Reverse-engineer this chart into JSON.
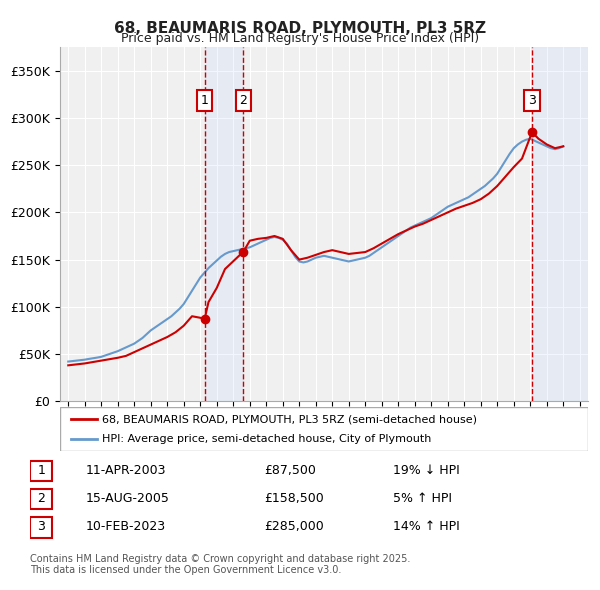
{
  "title_line1": "68, BEAUMARIS ROAD, PLYMOUTH, PL3 5RZ",
  "title_line2": "Price paid vs. HM Land Registry's House Price Index (HPI)",
  "ylabel": "",
  "xlabel": "",
  "xlim_start": 1995,
  "xlim_end": 2026.5,
  "ylim_min": 0,
  "ylim_max": 375000,
  "yticks": [
    0,
    50000,
    100000,
    150000,
    200000,
    250000,
    300000,
    350000
  ],
  "ytick_labels": [
    "£0",
    "£50K",
    "£100K",
    "£150K",
    "£200K",
    "£250K",
    "£300K",
    "£350K"
  ],
  "background_color": "#ffffff",
  "plot_bg_color": "#f0f0f0",
  "grid_color": "#ffffff",
  "hpi_line_color": "#6699cc",
  "price_line_color": "#cc0000",
  "transaction_marker_color": "#cc0000",
  "transactions": [
    {
      "date": 2003.27,
      "price": 87500,
      "label": "1"
    },
    {
      "date": 2005.62,
      "price": 158500,
      "label": "2"
    },
    {
      "date": 2023.11,
      "price": 285000,
      "label": "3"
    }
  ],
  "vline_color": "#cc0000",
  "shade_color": "#cce0ff",
  "legend_entries": [
    "68, BEAUMARIS ROAD, PLYMOUTH, PL3 5RZ (semi-detached house)",
    "HPI: Average price, semi-detached house, City of Plymouth"
  ],
  "table_rows": [
    {
      "num": "1",
      "date": "11-APR-2003",
      "price": "£87,500",
      "hpi": "19% ↓ HPI"
    },
    {
      "num": "2",
      "date": "15-AUG-2005",
      "price": "£158,500",
      "hpi": "5% ↑ HPI"
    },
    {
      "num": "3",
      "date": "10-FEB-2023",
      "price": "£285,000",
      "hpi": "14% ↑ HPI"
    }
  ],
  "footer": "Contains HM Land Registry data © Crown copyright and database right 2025.\nThis data is licensed under the Open Government Licence v3.0.",
  "hpi_data_x": [
    1995.0,
    1995.25,
    1995.5,
    1995.75,
    1996.0,
    1996.25,
    1996.5,
    1996.75,
    1997.0,
    1997.25,
    1997.5,
    1997.75,
    1998.0,
    1998.25,
    1998.5,
    1998.75,
    1999.0,
    1999.25,
    1999.5,
    1999.75,
    2000.0,
    2000.25,
    2000.5,
    2000.75,
    2001.0,
    2001.25,
    2001.5,
    2001.75,
    2002.0,
    2002.25,
    2002.5,
    2002.75,
    2003.0,
    2003.25,
    2003.5,
    2003.75,
    2004.0,
    2004.25,
    2004.5,
    2004.75,
    2005.0,
    2005.25,
    2005.5,
    2005.75,
    2006.0,
    2006.25,
    2006.5,
    2006.75,
    2007.0,
    2007.25,
    2007.5,
    2007.75,
    2008.0,
    2008.25,
    2008.5,
    2008.75,
    2009.0,
    2009.25,
    2009.5,
    2009.75,
    2010.0,
    2010.25,
    2010.5,
    2010.75,
    2011.0,
    2011.25,
    2011.5,
    2011.75,
    2012.0,
    2012.25,
    2012.5,
    2012.75,
    2013.0,
    2013.25,
    2013.5,
    2013.75,
    2014.0,
    2014.25,
    2014.5,
    2014.75,
    2015.0,
    2015.25,
    2015.5,
    2015.75,
    2016.0,
    2016.25,
    2016.5,
    2016.75,
    2017.0,
    2017.25,
    2017.5,
    2017.75,
    2018.0,
    2018.25,
    2018.5,
    2018.75,
    2019.0,
    2019.25,
    2019.5,
    2019.75,
    2020.0,
    2020.25,
    2020.5,
    2020.75,
    2021.0,
    2021.25,
    2021.5,
    2021.75,
    2022.0,
    2022.25,
    2022.5,
    2022.75,
    2023.0,
    2023.25,
    2023.5,
    2023.75,
    2024.0,
    2024.25,
    2024.5,
    2024.75,
    2025.0
  ],
  "hpi_data_y": [
    42000,
    42500,
    43000,
    43500,
    44000,
    44800,
    45500,
    46200,
    47000,
    48500,
    50000,
    51500,
    53000,
    55000,
    57000,
    59000,
    61000,
    64000,
    67000,
    71000,
    75000,
    78000,
    81000,
    84000,
    87000,
    90000,
    94000,
    98000,
    103000,
    110000,
    117000,
    124000,
    131000,
    136000,
    141000,
    145000,
    149000,
    153000,
    156000,
    158000,
    159000,
    160000,
    161000,
    162000,
    163000,
    165000,
    167000,
    169000,
    171000,
    173000,
    174000,
    173000,
    171000,
    167000,
    160000,
    153000,
    148000,
    147000,
    148000,
    150000,
    152000,
    153000,
    154000,
    153000,
    152000,
    151000,
    150000,
    149000,
    148000,
    149000,
    150000,
    151000,
    152000,
    154000,
    157000,
    160000,
    163000,
    166000,
    169000,
    172000,
    175000,
    178000,
    181000,
    184000,
    186000,
    188000,
    190000,
    192000,
    194000,
    197000,
    200000,
    203000,
    206000,
    208000,
    210000,
    212000,
    214000,
    216000,
    219000,
    222000,
    225000,
    228000,
    232000,
    236000,
    241000,
    248000,
    255000,
    262000,
    268000,
    272000,
    275000,
    277000,
    278000,
    276000,
    274000,
    272000,
    270000,
    268000,
    267000,
    268000,
    270000
  ],
  "price_data_x": [
    1995.0,
    1995.5,
    1996.0,
    1997.0,
    1998.0,
    1998.5,
    1999.0,
    1999.5,
    2000.0,
    2000.5,
    2001.0,
    2001.5,
    2002.0,
    2002.5,
    2003.27,
    2003.5,
    2004.0,
    2004.5,
    2005.62,
    2006.0,
    2006.5,
    2007.0,
    2007.5,
    2008.0,
    2008.5,
    2009.0,
    2009.5,
    2010.0,
    2010.5,
    2011.0,
    2011.5,
    2012.0,
    2012.5,
    2013.0,
    2013.5,
    2014.0,
    2014.5,
    2015.0,
    2015.5,
    2016.0,
    2016.5,
    2017.0,
    2017.5,
    2018.0,
    2018.5,
    2019.0,
    2019.5,
    2020.0,
    2020.5,
    2021.0,
    2021.5,
    2022.0,
    2022.5,
    2023.11,
    2023.5,
    2024.0,
    2024.5,
    2025.0
  ],
  "price_data_y": [
    38000,
    39000,
    40000,
    43000,
    46000,
    48000,
    52000,
    56000,
    60000,
    64000,
    68000,
    73000,
    80000,
    90000,
    87500,
    105000,
    120000,
    140000,
    158500,
    170000,
    172000,
    173000,
    175000,
    172000,
    160000,
    150000,
    152000,
    155000,
    158000,
    160000,
    158000,
    156000,
    157000,
    158000,
    162000,
    167000,
    172000,
    177000,
    181000,
    185000,
    188000,
    192000,
    196000,
    200000,
    204000,
    207000,
    210000,
    214000,
    220000,
    228000,
    238000,
    248000,
    257000,
    285000,
    278000,
    272000,
    268000,
    270000
  ]
}
